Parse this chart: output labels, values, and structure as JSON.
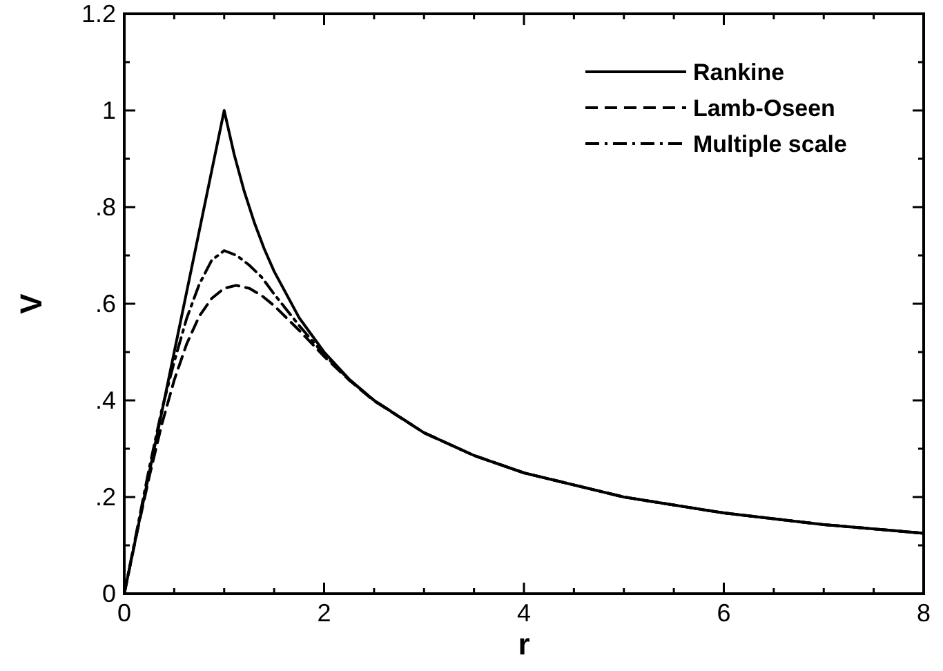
{
  "chart_data": {
    "type": "line",
    "xlabel": "r",
    "ylabel": "V",
    "xlim": [
      0,
      8
    ],
    "ylim": [
      0,
      1.2
    ],
    "xticks": [
      0,
      {
        "value": 0.5,
        "label": null
      },
      {
        "value": 1,
        "label": null
      },
      {
        "value": 1.5,
        "label": null
      },
      2,
      {
        "value": 2.5,
        "label": null
      },
      {
        "value": 3,
        "label": null
      },
      {
        "value": 3.5,
        "label": null
      },
      4,
      {
        "value": 4.5,
        "label": null
      },
      {
        "value": 5,
        "label": null
      },
      {
        "value": 5.5,
        "label": null
      },
      6,
      {
        "value": 6.5,
        "label": null
      },
      {
        "value": 7,
        "label": null
      },
      {
        "value": 7.5,
        "label": null
      },
      8
    ],
    "yticks": [
      0,
      {
        "value": 0.1,
        "label": null
      },
      {
        "value": 0.2,
        "label": ".2"
      },
      {
        "value": 0.3,
        "label": null
      },
      {
        "value": 0.4,
        "label": ".4"
      },
      {
        "value": 0.5,
        "label": null
      },
      {
        "value": 0.6,
        "label": ".6"
      },
      {
        "value": 0.7,
        "label": null
      },
      {
        "value": 0.8,
        "label": ".8"
      },
      {
        "value": 0.9,
        "label": null
      },
      1,
      {
        "value": 1.1,
        "label": null
      },
      1.2
    ],
    "grid": false,
    "legend": "top right",
    "marker": "none",
    "series": [
      {
        "name": "Rankine",
        "color": "#000000",
        "line_style": "solid",
        "x": [
          0,
          0.5,
          1,
          1.1,
          1.2,
          1.3,
          1.4,
          1.5,
          1.75,
          2,
          2.25,
          2.5,
          3,
          3.5,
          4,
          5,
          6,
          7,
          8
        ],
        "values": [
          0,
          0.5,
          1,
          0.909,
          0.833,
          0.769,
          0.714,
          0.667,
          0.571,
          0.5,
          0.444,
          0.4,
          0.333,
          0.286,
          0.25,
          0.2,
          0.167,
          0.143,
          0.125
        ]
      },
      {
        "name": "Lamb-Oseen",
        "color": "#000000",
        "line_style": "dashed",
        "x": [
          0,
          0.125,
          0.25,
          0.375,
          0.5,
          0.625,
          0.75,
          0.875,
          1,
          1.12,
          1.25,
          1.375,
          1.5,
          1.75,
          2,
          2.25,
          2.5,
          3,
          3.5,
          4,
          5,
          6,
          7,
          8
        ],
        "values": [
          0,
          0.124,
          0.242,
          0.35,
          0.442,
          0.517,
          0.574,
          0.611,
          0.632,
          0.638,
          0.632,
          0.617,
          0.596,
          0.545,
          0.491,
          0.442,
          0.399,
          0.333,
          0.286,
          0.25,
          0.2,
          0.167,
          0.143,
          0.125
        ]
      },
      {
        "name": "Multiple scale",
        "color": "#000000",
        "line_style": "dashdot",
        "x": [
          0,
          0.125,
          0.25,
          0.375,
          0.5,
          0.625,
          0.75,
          0.875,
          1,
          1.125,
          1.25,
          1.375,
          1.5,
          1.75,
          2,
          2.25,
          2.5,
          3,
          3.5,
          4,
          5,
          6,
          7,
          8
        ],
        "values": [
          0,
          0.13,
          0.26,
          0.38,
          0.48,
          0.57,
          0.64,
          0.69,
          0.71,
          0.7,
          0.68,
          0.655,
          0.62,
          0.555,
          0.495,
          0.443,
          0.4,
          0.333,
          0.286,
          0.25,
          0.2,
          0.167,
          0.143,
          0.125
        ]
      }
    ]
  }
}
